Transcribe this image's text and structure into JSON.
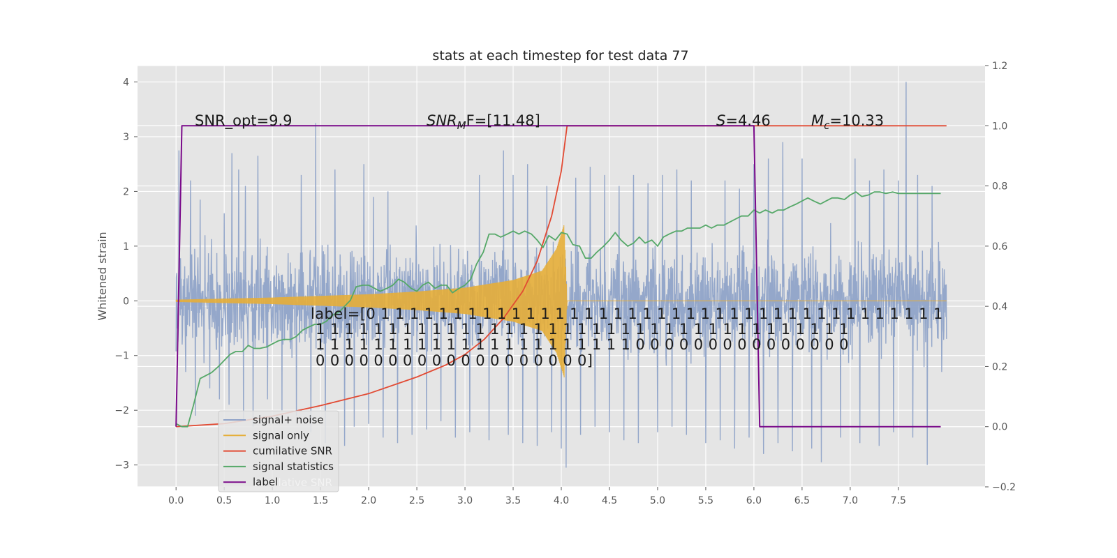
{
  "chart_data": {
    "type": "line",
    "title": "stats at each timestep for test data 77",
    "ylabel": "Whitened strain",
    "xlim": [
      -0.4,
      8.4
    ],
    "ylim": [
      -3.4,
      4.3
    ],
    "y2lim": [
      -0.2,
      1.2
    ],
    "x_ticks": [
      "0.0",
      "0.5",
      "1.0",
      "1.5",
      "2.0",
      "2.5",
      "3.0",
      "3.5",
      "4.0",
      "4.5",
      "5.0",
      "5.5",
      "6.0",
      "6.5",
      "7.0",
      "7.5"
    ],
    "y_ticks": [
      "4",
      "3",
      "2",
      "1",
      "0",
      "−1",
      "−2",
      "−3"
    ],
    "y2_ticks": [
      "1.2",
      "1.0",
      "0.8",
      "0.6",
      "0.4",
      "0.2",
      "0.0",
      "−0.2"
    ],
    "grid": true,
    "legend_placement": "lower-left",
    "annotations": {
      "snr_opt": "SNR_opt=9.9",
      "snr_mf_sym": "SNR",
      "snr_mf_sub": "M",
      "snr_mf_rest": "F=[11.48]",
      "s_sym": "S",
      "s_rest": "=4.46",
      "mc_sym": "M",
      "mc_sub": "c",
      "mc_rest": "=10.33",
      "label_lines": [
        "label=[0 1 1 1 1 1 1 1 1 1 1 1 1 1 1 1 1 1 1 1 1 1 1 1 1 1 1 1 1 1 1 1 1 1 1 1 1 1 1 1",
        "1 1 1 1 1 1 1 1 1 1 1 1 1 1 1 1 1 1 1 1 1 1 1 1 1 1 1 1 1 1 1 1 1 1 1 1 1",
        "1 1 1 1 1 1 1 1 1 1 1 1 1 1 1 1 1 1 1 1 1 1 0 0 0 0 0 0 0 0 0 0 0 0 0 0 0",
        "0 0 0 0 0 0 0 0 0 0 0 0 0 0 0 0 0 0 0]"
      ]
    },
    "series": [
      {
        "name": "signal+ noise",
        "color": "#8fa3c8",
        "axis": "left",
        "style": "noisy strain, amplitude approx ±1.3 with spikes to about ±3",
        "x_range": [
          0.0,
          8.0
        ],
        "peaks": [
          [
            0.03,
            2.75
          ],
          [
            0.15,
            2.2
          ],
          [
            0.2,
            1.65
          ],
          [
            0.25,
            1.85
          ],
          [
            0.3,
            1.2
          ],
          [
            0.45,
            2.5
          ],
          [
            0.5,
            1.6
          ],
          [
            0.58,
            2.7
          ],
          [
            0.65,
            2.4
          ],
          [
            0.72,
            2.1
          ],
          [
            0.85,
            2.65
          ],
          [
            0.95,
            1.8
          ],
          [
            1.1,
            2.6
          ],
          [
            1.3,
            2.3
          ],
          [
            1.45,
            3.25
          ],
          [
            1.55,
            3.0
          ],
          [
            1.65,
            2.4
          ],
          [
            1.75,
            2.0
          ],
          [
            1.95,
            2.5
          ],
          [
            2.05,
            1.9
          ],
          [
            2.2,
            2.0
          ],
          [
            2.3,
            2.6
          ],
          [
            2.45,
            2.9
          ],
          [
            2.6,
            2.5
          ],
          [
            2.75,
            2.3
          ],
          [
            2.9,
            3.1
          ],
          [
            3.05,
            2.6
          ],
          [
            3.15,
            2.3
          ],
          [
            3.25,
            2.4
          ],
          [
            3.4,
            2.75
          ],
          [
            3.5,
            2.3
          ],
          [
            3.65,
            2.5
          ],
          [
            3.85,
            2.1
          ],
          [
            4.0,
            1.4
          ],
          [
            4.15,
            2.25
          ],
          [
            4.3,
            2.45
          ],
          [
            4.45,
            2.3
          ],
          [
            4.6,
            2.1
          ],
          [
            4.75,
            2.3
          ],
          [
            4.9,
            2.15
          ],
          [
            5.05,
            2.3
          ],
          [
            5.2,
            2.4
          ],
          [
            5.35,
            2.2
          ],
          [
            5.5,
            2.0
          ],
          [
            5.7,
            2.2
          ],
          [
            5.85,
            2.05
          ],
          [
            6.0,
            2.5
          ],
          [
            6.15,
            2.6
          ],
          [
            6.3,
            2.9
          ],
          [
            6.5,
            2.6
          ],
          [
            6.7,
            2.8
          ],
          [
            6.9,
            2.3
          ],
          [
            7.05,
            2.6
          ],
          [
            7.2,
            2.2
          ],
          [
            7.35,
            2.4
          ],
          [
            7.5,
            2.2
          ],
          [
            7.58,
            4.0
          ],
          [
            7.7,
            2.3
          ],
          [
            7.85,
            2.1
          ],
          [
            7.95,
            1.1
          ]
        ],
        "troughs": [
          [
            0.02,
            -0.75
          ],
          [
            0.1,
            -1.3
          ],
          [
            0.2,
            -2.1
          ],
          [
            0.35,
            -1.6
          ],
          [
            0.45,
            -1.8
          ],
          [
            0.55,
            -1.9
          ],
          [
            0.7,
            -2.2
          ],
          [
            0.8,
            -2.3
          ],
          [
            0.95,
            -1.8
          ],
          [
            1.1,
            -2.0
          ],
          [
            1.25,
            -2.1
          ],
          [
            1.4,
            -2.4
          ],
          [
            1.55,
            -2.6
          ],
          [
            1.75,
            -2.65
          ],
          [
            1.85,
            -2.3
          ],
          [
            2.0,
            -2.25
          ],
          [
            2.15,
            -2.5
          ],
          [
            2.3,
            -2.6
          ],
          [
            2.45,
            -2.45
          ],
          [
            2.6,
            -2.35
          ],
          [
            2.75,
            -2.2
          ],
          [
            2.9,
            -2.5
          ],
          [
            3.05,
            -2.4
          ],
          [
            3.25,
            -2.55
          ],
          [
            3.45,
            -2.45
          ],
          [
            3.6,
            -2.6
          ],
          [
            3.75,
            -2.65
          ],
          [
            3.9,
            -2.4
          ],
          [
            4.0,
            -2.7
          ],
          [
            4.05,
            -3.05
          ],
          [
            4.2,
            -2.45
          ],
          [
            4.35,
            -2.3
          ],
          [
            4.5,
            -2.4
          ],
          [
            4.65,
            -2.55
          ],
          [
            4.8,
            -2.6
          ],
          [
            5.0,
            -2.4
          ],
          [
            5.15,
            -2.3
          ],
          [
            5.3,
            -2.45
          ],
          [
            5.5,
            -2.6
          ],
          [
            5.65,
            -2.55
          ],
          [
            5.8,
            -2.7
          ],
          [
            5.95,
            -2.5
          ],
          [
            6.1,
            -2.8
          ],
          [
            6.25,
            -2.6
          ],
          [
            6.4,
            -2.75
          ],
          [
            6.6,
            -2.7
          ],
          [
            6.7,
            -2.95
          ],
          [
            6.9,
            -2.5
          ],
          [
            7.1,
            -2.6
          ],
          [
            7.3,
            -2.65
          ],
          [
            7.45,
            -2.4
          ],
          [
            7.65,
            -2.5
          ],
          [
            7.8,
            -3.0
          ],
          [
            7.95,
            -1.3
          ]
        ]
      },
      {
        "name": "signal only",
        "color": "#e5ae38",
        "axis": "left",
        "style": "chirp, oscillation whose amplitude grows until merger then stops",
        "envelope": [
          [
            0.0,
            0.02
          ],
          [
            0.5,
            0.04
          ],
          [
            1.0,
            0.06
          ],
          [
            1.5,
            0.09
          ],
          [
            2.0,
            0.12
          ],
          [
            2.5,
            0.17
          ],
          [
            3.0,
            0.24
          ],
          [
            3.5,
            0.38
          ],
          [
            3.8,
            0.55
          ],
          [
            3.95,
            0.95
          ],
          [
            4.03,
            1.4
          ],
          [
            4.06,
            0.0
          ],
          [
            8.0,
            0.0
          ]
        ]
      },
      {
        "name": "cumilative SNR",
        "color": "#e24a33",
        "axis": "right",
        "x": [
          0.0,
          0.5,
          1.0,
          1.5,
          2.0,
          2.5,
          2.8,
          3.0,
          3.2,
          3.4,
          3.6,
          3.75,
          3.9,
          4.0,
          4.06,
          4.1,
          8.0
        ],
        "y": [
          0.0,
          0.01,
          0.035,
          0.07,
          0.11,
          0.165,
          0.205,
          0.24,
          0.29,
          0.36,
          0.45,
          0.55,
          0.7,
          0.85,
          1.0,
          1.0,
          1.0
        ]
      },
      {
        "name": "signal statistics",
        "color": "#55a868",
        "axis": "right",
        "x": [
          0.0,
          0.06,
          0.12,
          0.18,
          0.25,
          0.31,
          0.37,
          0.44,
          0.5,
          0.56,
          0.62,
          0.69,
          0.75,
          0.81,
          0.87,
          0.94,
          1.0,
          1.06,
          1.12,
          1.19,
          1.25,
          1.31,
          1.37,
          1.44,
          1.5,
          1.56,
          1.62,
          1.69,
          1.75,
          1.81,
          1.87,
          1.94,
          2.0,
          2.06,
          2.12,
          2.19,
          2.25,
          2.31,
          2.37,
          2.44,
          2.5,
          2.56,
          2.62,
          2.69,
          2.75,
          2.81,
          2.87,
          2.94,
          3.0,
          3.06,
          3.12,
          3.19,
          3.25,
          3.31,
          3.37,
          3.44,
          3.5,
          3.56,
          3.62,
          3.69,
          3.75,
          3.81,
          3.87,
          3.94,
          4.0,
          4.06,
          4.12,
          4.19,
          4.25,
          4.31,
          4.37,
          4.44,
          4.5,
          4.56,
          4.62,
          4.69,
          4.75,
          4.81,
          4.87,
          4.94,
          5.0,
          5.06,
          5.12,
          5.19,
          5.25,
          5.31,
          5.37,
          5.44,
          5.5,
          5.56,
          5.62,
          5.69,
          5.75,
          5.81,
          5.87,
          5.94,
          6.0,
          6.06,
          6.12,
          6.19,
          6.25,
          6.31,
          6.37,
          6.44,
          6.5,
          6.56,
          6.62,
          6.69,
          6.75,
          6.81,
          6.87,
          6.94,
          7.0,
          7.06,
          7.12,
          7.19,
          7.25,
          7.31,
          7.37,
          7.44,
          7.5,
          7.56,
          7.62,
          7.69,
          7.75,
          7.81,
          7.87,
          7.94
        ],
        "y": [
          0.01,
          0.0,
          0.0,
          0.07,
          0.16,
          0.17,
          0.18,
          0.2,
          0.22,
          0.24,
          0.25,
          0.25,
          0.27,
          0.26,
          0.26,
          0.265,
          0.275,
          0.285,
          0.29,
          0.29,
          0.3,
          0.32,
          0.33,
          0.34,
          0.34,
          0.35,
          0.37,
          0.38,
          0.4,
          0.42,
          0.465,
          0.47,
          0.47,
          0.46,
          0.45,
          0.46,
          0.47,
          0.49,
          0.48,
          0.46,
          0.45,
          0.47,
          0.48,
          0.46,
          0.47,
          0.47,
          0.445,
          0.46,
          0.47,
          0.49,
          0.54,
          0.58,
          0.64,
          0.64,
          0.63,
          0.64,
          0.65,
          0.64,
          0.65,
          0.64,
          0.62,
          0.595,
          0.635,
          0.62,
          0.645,
          0.64,
          0.605,
          0.6,
          0.56,
          0.56,
          0.58,
          0.6,
          0.62,
          0.645,
          0.62,
          0.6,
          0.61,
          0.63,
          0.61,
          0.62,
          0.6,
          0.63,
          0.64,
          0.65,
          0.65,
          0.66,
          0.66,
          0.66,
          0.67,
          0.66,
          0.67,
          0.67,
          0.68,
          0.69,
          0.7,
          0.7,
          0.72,
          0.71,
          0.72,
          0.71,
          0.72,
          0.72,
          0.73,
          0.74,
          0.75,
          0.76,
          0.75,
          0.74,
          0.75,
          0.76,
          0.76,
          0.755,
          0.77,
          0.78,
          0.765,
          0.77,
          0.78,
          0.78,
          0.775,
          0.78,
          0.775,
          0.775,
          0.775,
          0.775,
          0.775,
          0.775,
          0.775,
          0.775
        ]
      },
      {
        "name": "label",
        "color": "#7a0a8a",
        "axis": "right",
        "x": [
          0.0,
          0.06,
          6.0,
          6.06,
          7.94
        ],
        "y": [
          0.0,
          1.0,
          1.0,
          0.0,
          0.0
        ]
      }
    ],
    "legend_overlap_text": "cumilative SNR"
  }
}
